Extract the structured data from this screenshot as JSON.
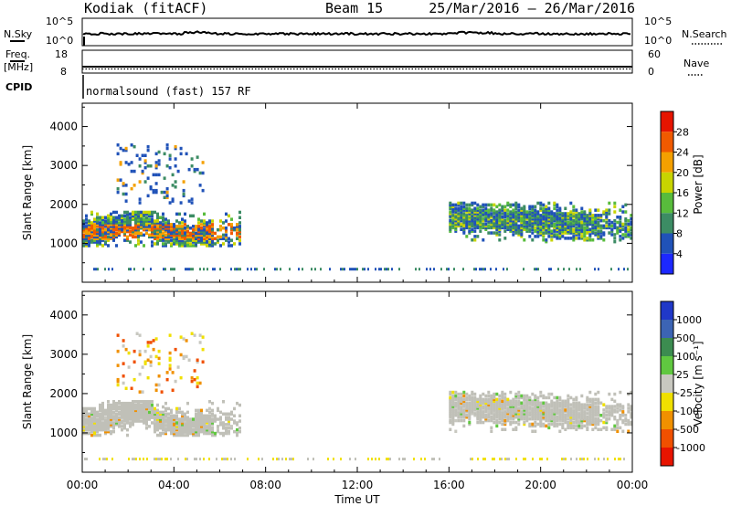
{
  "header": {
    "title": "Kodiak (fitACF)",
    "beam": "Beam 15",
    "date_range": "25/Mar/2016 – 26/Mar/2016"
  },
  "noise_panel": {
    "left_label": "N.Sky",
    "right_label": "N.Search",
    "left_ticks": [
      "10^5",
      "10^0"
    ],
    "right_ticks": [
      "10^5",
      "10^0"
    ]
  },
  "freq_panel": {
    "left_label_line1": "Freq.",
    "left_label_line2": "[MHz]",
    "left_ticks": [
      "18",
      "8"
    ],
    "right_label": "Nave",
    "right_ticks": [
      "60",
      "0"
    ]
  },
  "cpid": {
    "label": "CPID",
    "text": "normalsound (fast) 157 RF"
  },
  "chart_data": [
    {
      "type": "heatmap",
      "name": "power-panel",
      "ylabel": "Slant Range [km]",
      "y_ticks": [
        1000,
        2000,
        3000,
        4000
      ],
      "ylim": [
        0,
        4600
      ],
      "x_tick_labels": [
        "00:00",
        "04:00",
        "08:00",
        "12:00",
        "16:00",
        "20:00",
        "00:00"
      ],
      "xlim_hours": [
        0,
        24
      ],
      "colorbar": {
        "label": "Power [dB]",
        "ticks": [
          "4",
          "8",
          "12",
          "16",
          "20",
          "24",
          "28"
        ],
        "colors": [
          "#1c28ff",
          "#2052b8",
          "#3c8c64",
          "#58bc3c",
          "#c8d400",
          "#f4a000",
          "#f05a00",
          "#e61400"
        ]
      },
      "echo_regions": [
        {
          "t_start": 0.0,
          "t_end": 6.9,
          "range_min_km": 900,
          "range_max_km": 1800,
          "level": "strong"
        },
        {
          "t_start": 1.5,
          "t_end": 5.3,
          "range_min_km": 2000,
          "range_max_km": 3500,
          "level": "scattered"
        },
        {
          "t_start": 16.0,
          "t_end": 24.0,
          "range_min_km": 1000,
          "range_max_km": 2000,
          "level": "medium"
        }
      ]
    },
    {
      "type": "heatmap",
      "name": "velocity-panel",
      "ylabel": "Slant Range [km]",
      "y_ticks": [
        1000,
        2000,
        3000,
        4000
      ],
      "ylim": [
        0,
        4600
      ],
      "x_tick_labels": [
        "00:00",
        "04:00",
        "08:00",
        "12:00",
        "16:00",
        "20:00",
        "00:00"
      ],
      "xlim_hours": [
        0,
        24
      ],
      "xlabel": "Time UT",
      "colorbar": {
        "label": "Velocity [m s⁻¹]",
        "ticks": [
          "1000",
          "500",
          "100",
          "25",
          "-25",
          "-100",
          "-500",
          "-1000"
        ],
        "colors": [
          "#2038c8",
          "#3c64b4",
          "#3c8c50",
          "#60c840",
          "#c8c8c0",
          "#f0e000",
          "#f09000",
          "#f05000",
          "#e81400"
        ]
      },
      "echo_regions": [
        {
          "t_start": 0.0,
          "t_end": 6.9,
          "range_min_km": 900,
          "range_max_km": 1800,
          "level": "ground-scatter"
        },
        {
          "t_start": 1.5,
          "t_end": 5.3,
          "range_min_km": 2000,
          "range_max_km": 3500,
          "level": "scattered"
        },
        {
          "t_start": 16.0,
          "t_end": 24.0,
          "range_min_km": 1000,
          "range_max_km": 2000,
          "level": "ground-scatter"
        }
      ]
    }
  ]
}
